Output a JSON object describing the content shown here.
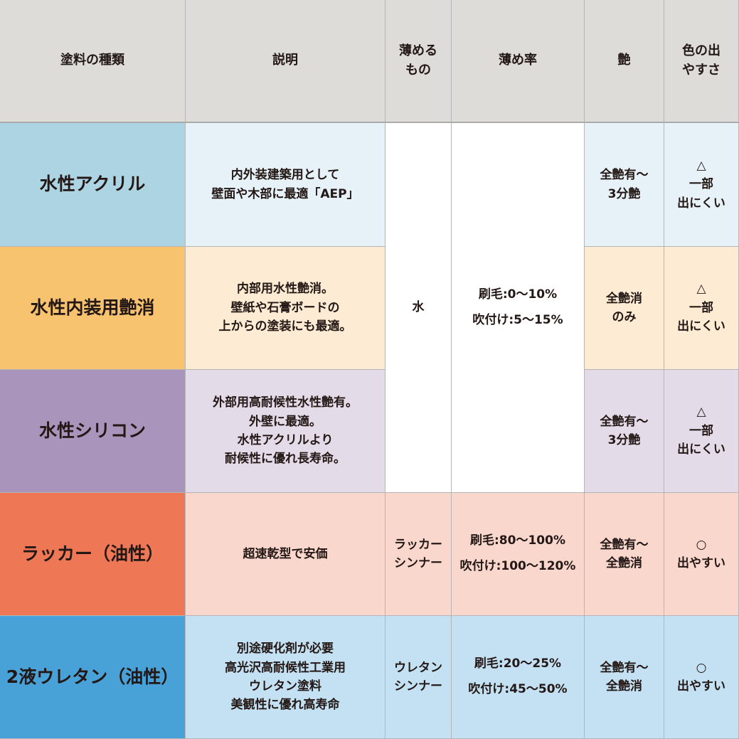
{
  "headers": [
    "塗料の種類",
    "説明",
    "薄める\nもの",
    "薄め率",
    "艶",
    "色の出\nやすさ"
  ],
  "shared": {
    "thinner": "水",
    "ratio": "刷毛:0〜10%\n吹付け:5〜15%"
  },
  "rows": [
    {
      "type": "水性アクリル",
      "description": "内外装建築用として\n壁面や木部に最適「AEP」",
      "gloss": "全艶有〜\n3分艶",
      "color_ease": "△\n一部\n出にくい",
      "type_color": "#acd4e3",
      "light_color": "#e6f2f7"
    },
    {
      "type": "水性内装用艶消",
      "description": "内部用水性艶消。\n壁紙や石膏ボードの\n上からの塗装にも最適。",
      "gloss": "全艶消\nのみ",
      "color_ease": "△\n一部\n出にくい",
      "type_color": "#f8c36f",
      "light_color": "#fdebd3"
    },
    {
      "type": "水性シリコン",
      "description": "外部用高耐候性水性艶有。\n外壁に最適。\n水性アクリルより\n耐候性に優れ長寿命。",
      "gloss": "全艶有〜\n3分艶",
      "color_ease": "△\n一部\n出にくい",
      "type_color": "#a994bb",
      "light_color": "#e4dbe9"
    },
    {
      "type": "ラッカー（油性）",
      "description": "超速乾型で安価",
      "thinner": "ラッカー\nシンナー",
      "ratio": "刷毛:80〜100%\n吹付け:100〜120%",
      "gloss": "全艶有〜\n全艶消",
      "color_ease": "○\n出やすい",
      "type_color": "#ee7856",
      "light_color": "#f9d7cd"
    },
    {
      "type": "2液ウレタン（油性）",
      "description": "別途硬化剤が必要\n高光沢高耐候性工業用\nウレタン塗料\n美観性に優れ高寿命",
      "thinner": "ウレタン\nシンナー",
      "ratio": "刷毛:20〜25%\n吹付け:45〜50%",
      "gloss": "全艶有〜\n全艶消",
      "color_ease": "○\n出やすい",
      "type_color": "#48a2d8",
      "light_color": "#c3e1f3"
    }
  ]
}
